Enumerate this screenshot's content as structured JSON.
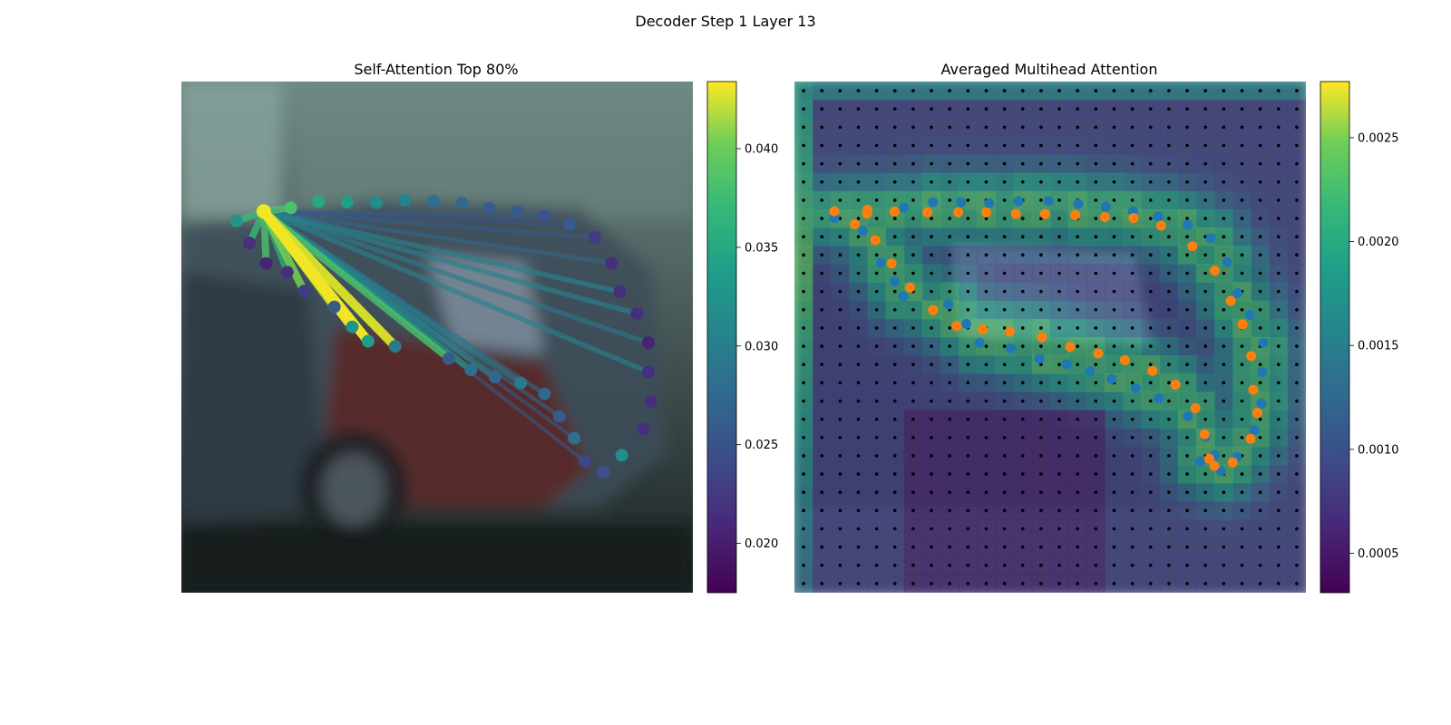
{
  "figure": {
    "suptitle": "Decoder Step 1 Layer 13"
  },
  "chart_data": [
    {
      "type": "scatter",
      "title": "Self-Attention Top 80%",
      "description_of_background": "photo",
      "colorbar": {
        "colormap": "viridis",
        "min": 0.0175,
        "max": 0.0434,
        "ticks": [
          0.02,
          0.025,
          0.03,
          0.035,
          0.04
        ],
        "tick_labels": [
          "0.020",
          "0.025",
          "0.030",
          "0.035",
          "0.040"
        ]
      },
      "query_index": 1,
      "points": [
        {
          "x": 0.108,
          "y": 0.273,
          "v": 0.031
        },
        {
          "x": 0.161,
          "y": 0.254,
          "v": 0.043
        },
        {
          "x": 0.214,
          "y": 0.247,
          "v": 0.036
        },
        {
          "x": 0.268,
          "y": 0.235,
          "v": 0.033
        },
        {
          "x": 0.324,
          "y": 0.236,
          "v": 0.032
        },
        {
          "x": 0.381,
          "y": 0.237,
          "v": 0.03
        },
        {
          "x": 0.437,
          "y": 0.232,
          "v": 0.029
        },
        {
          "x": 0.493,
          "y": 0.234,
          "v": 0.027
        },
        {
          "x": 0.549,
          "y": 0.238,
          "v": 0.026
        },
        {
          "x": 0.602,
          "y": 0.248,
          "v": 0.025
        },
        {
          "x": 0.656,
          "y": 0.254,
          "v": 0.025
        },
        {
          "x": 0.71,
          "y": 0.263,
          "v": 0.024
        },
        {
          "x": 0.759,
          "y": 0.28,
          "v": 0.025
        },
        {
          "x": 0.808,
          "y": 0.305,
          "v": 0.022
        },
        {
          "x": 0.841,
          "y": 0.355,
          "v": 0.021
        },
        {
          "x": 0.857,
          "y": 0.411,
          "v": 0.021
        },
        {
          "x": 0.891,
          "y": 0.454,
          "v": 0.021
        },
        {
          "x": 0.913,
          "y": 0.511,
          "v": 0.02
        },
        {
          "x": 0.913,
          "y": 0.568,
          "v": 0.021
        },
        {
          "x": 0.918,
          "y": 0.626,
          "v": 0.021
        },
        {
          "x": 0.903,
          "y": 0.68,
          "v": 0.021
        },
        {
          "x": 0.861,
          "y": 0.731,
          "v": 0.03
        },
        {
          "x": 0.825,
          "y": 0.764,
          "v": 0.024
        },
        {
          "x": 0.789,
          "y": 0.743,
          "v": 0.023
        },
        {
          "x": 0.768,
          "y": 0.698,
          "v": 0.027
        },
        {
          "x": 0.739,
          "y": 0.655,
          "v": 0.025
        },
        {
          "x": 0.71,
          "y": 0.611,
          "v": 0.026
        },
        {
          "x": 0.663,
          "y": 0.59,
          "v": 0.028
        },
        {
          "x": 0.613,
          "y": 0.578,
          "v": 0.026
        },
        {
          "x": 0.566,
          "y": 0.564,
          "v": 0.027
        },
        {
          "x": 0.523,
          "y": 0.542,
          "v": 0.025
        },
        {
          "x": 0.418,
          "y": 0.518,
          "v": 0.028
        },
        {
          "x": 0.365,
          "y": 0.508,
          "v": 0.032
        },
        {
          "x": 0.334,
          "y": 0.48,
          "v": 0.031
        },
        {
          "x": 0.299,
          "y": 0.441,
          "v": 0.025
        },
        {
          "x": 0.24,
          "y": 0.41,
          "v": 0.022
        },
        {
          "x": 0.207,
          "y": 0.373,
          "v": 0.021
        },
        {
          "x": 0.166,
          "y": 0.356,
          "v": 0.02
        },
        {
          "x": 0.133,
          "y": 0.316,
          "v": 0.021
        }
      ],
      "links": [
        {
          "to": 0,
          "w": 0.035
        },
        {
          "to": 2,
          "w": 0.036
        },
        {
          "to": 36,
          "w": 0.034
        },
        {
          "to": 37,
          "w": 0.036
        },
        {
          "to": 38,
          "w": 0.035
        },
        {
          "to": 35,
          "w": 0.038
        },
        {
          "to": 34,
          "w": 0.04
        },
        {
          "to": 33,
          "w": 0.043
        },
        {
          "to": 32,
          "w": 0.043
        },
        {
          "to": 31,
          "w": 0.042
        },
        {
          "to": 30,
          "w": 0.036
        },
        {
          "to": 29,
          "w": 0.032
        },
        {
          "to": 28,
          "w": 0.03
        },
        {
          "to": 27,
          "w": 0.029
        },
        {
          "to": 26,
          "w": 0.027
        },
        {
          "to": 25,
          "w": 0.026
        },
        {
          "to": 24,
          "w": 0.025
        },
        {
          "to": 23,
          "w": 0.025
        },
        {
          "to": 15,
          "w": 0.029
        },
        {
          "to": 16,
          "w": 0.029
        },
        {
          "to": 17,
          "w": 0.028
        },
        {
          "to": 18,
          "w": 0.029
        },
        {
          "to": 14,
          "w": 0.026
        },
        {
          "to": 13,
          "w": 0.025
        },
        {
          "to": 12,
          "w": 0.024
        },
        {
          "to": 11,
          "w": 0.025
        }
      ]
    },
    {
      "type": "heatmap",
      "title": "Averaged Multihead Attention",
      "description_of_background": "photo",
      "grid": {
        "cols": 28,
        "rows": 28
      },
      "colorbar": {
        "colormap": "viridis",
        "min": 0.00031,
        "max": 0.00277,
        "ticks": [
          0.0005,
          0.001,
          0.0015,
          0.002,
          0.0025
        ],
        "tick_labels": [
          "0.0005",
          "0.0010",
          "0.0015",
          "0.0020",
          "0.0025"
        ]
      },
      "series": [
        {
          "color": "#1f77b4",
          "points": [
            [
              0.078,
              0.267
            ],
            [
              0.134,
              0.292
            ],
            [
              0.169,
              0.354
            ],
            [
              0.196,
              0.391
            ],
            [
              0.213,
              0.42
            ],
            [
              0.301,
              0.436
            ],
            [
              0.336,
              0.474
            ],
            [
              0.362,
              0.511
            ],
            [
              0.423,
              0.522
            ],
            [
              0.479,
              0.542
            ],
            [
              0.532,
              0.553
            ],
            [
              0.578,
              0.567
            ],
            [
              0.62,
              0.582
            ],
            [
              0.667,
              0.6
            ],
            [
              0.712,
              0.62
            ],
            [
              0.769,
              0.655
            ],
            [
              0.804,
              0.695
            ],
            [
              0.822,
              0.731
            ],
            [
              0.793,
              0.743
            ],
            [
              0.834,
              0.762
            ],
            [
              0.865,
              0.735
            ],
            [
              0.899,
              0.682
            ],
            [
              0.913,
              0.63
            ],
            [
              0.915,
              0.568
            ],
            [
              0.917,
              0.511
            ],
            [
              0.891,
              0.457
            ],
            [
              0.866,
              0.414
            ],
            [
              0.846,
              0.353
            ],
            [
              0.814,
              0.306
            ],
            [
              0.769,
              0.28
            ],
            [
              0.711,
              0.264
            ],
            [
              0.662,
              0.254
            ],
            [
              0.609,
              0.245
            ],
            [
              0.555,
              0.24
            ],
            [
              0.497,
              0.234
            ],
            [
              0.438,
              0.234
            ],
            [
              0.381,
              0.238
            ],
            [
              0.326,
              0.236
            ],
            [
              0.271,
              0.236
            ],
            [
              0.214,
              0.247
            ]
          ]
        },
        {
          "color": "#ff7f0e",
          "points": [
            [
              0.078,
              0.254
            ],
            [
              0.118,
              0.279
            ],
            [
              0.143,
              0.251
            ],
            [
              0.158,
              0.31
            ],
            [
              0.19,
              0.356
            ],
            [
              0.226,
              0.403
            ],
            [
              0.271,
              0.447
            ],
            [
              0.317,
              0.478
            ],
            [
              0.368,
              0.485
            ],
            [
              0.421,
              0.489
            ],
            [
              0.484,
              0.5
            ],
            [
              0.539,
              0.519
            ],
            [
              0.594,
              0.532
            ],
            [
              0.646,
              0.545
            ],
            [
              0.7,
              0.566
            ],
            [
              0.745,
              0.593
            ],
            [
              0.784,
              0.639
            ],
            [
              0.802,
              0.69
            ],
            [
              0.811,
              0.738
            ],
            [
              0.821,
              0.752
            ],
            [
              0.857,
              0.745
            ],
            [
              0.892,
              0.699
            ],
            [
              0.905,
              0.648
            ],
            [
              0.897,
              0.603
            ],
            [
              0.893,
              0.537
            ],
            [
              0.876,
              0.475
            ],
            [
              0.853,
              0.429
            ],
            [
              0.822,
              0.37
            ],
            [
              0.778,
              0.322
            ],
            [
              0.717,
              0.282
            ],
            [
              0.663,
              0.267
            ],
            [
              0.607,
              0.265
            ],
            [
              0.549,
              0.261
            ],
            [
              0.49,
              0.259
            ],
            [
              0.433,
              0.259
            ],
            [
              0.375,
              0.256
            ],
            [
              0.32,
              0.256
            ],
            [
              0.26,
              0.256
            ],
            [
              0.196,
              0.254
            ],
            [
              0.142,
              0.258
            ]
          ]
        }
      ]
    }
  ]
}
